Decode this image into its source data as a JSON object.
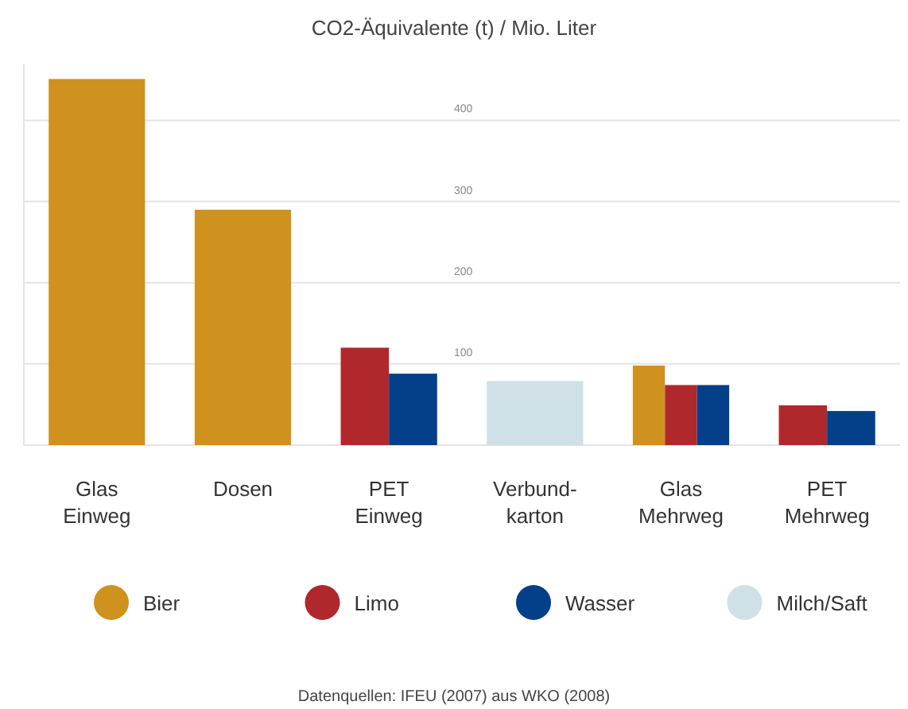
{
  "chart_data": {
    "type": "bar",
    "title": "CO2-Äquivalente (t) / Mio. Liter",
    "categories": [
      "Glas\nEinweg",
      "Dosen",
      "PET\nEinweg",
      "Verbund-\nkarton",
      "Glas\nMehrweg",
      "PET\nMehrweg"
    ],
    "series": [
      {
        "name": "Bier",
        "color": "#d0921e",
        "values": [
          451,
          290,
          null,
          null,
          98,
          null
        ]
      },
      {
        "name": "Limo",
        "color": "#b0282b",
        "values": [
          null,
          null,
          120,
          null,
          74,
          49
        ]
      },
      {
        "name": "Wasser",
        "color": "#043f8a",
        "values": [
          null,
          null,
          88,
          null,
          74,
          42
        ]
      },
      {
        "name": "Milch/Saft",
        "color": "#cfe0e6",
        "values": [
          null,
          null,
          null,
          79,
          null,
          null
        ]
      }
    ],
    "ylim": [
      0,
      470
    ],
    "yticks": [
      100,
      200,
      300,
      400
    ],
    "grid": "y",
    "legend": "bottom",
    "annotations": [
      "Datenquellen: IFEU (2007) aus WKO (2008)"
    ]
  }
}
